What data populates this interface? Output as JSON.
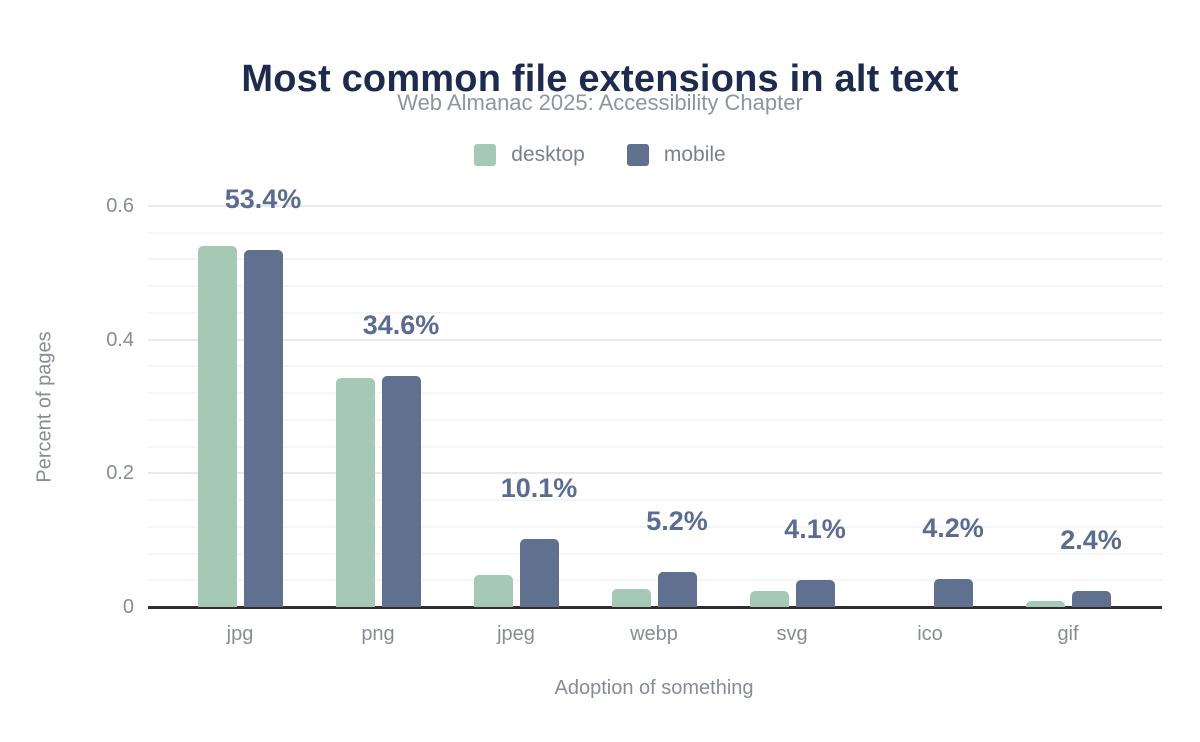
{
  "chart_data": {
    "type": "bar",
    "title": "Most common file extensions in alt text",
    "subtitle": "Web Almanac 2025: Accessibility Chapter",
    "xlabel": "Adoption of something",
    "ylabel": "Percent of pages",
    "categories": [
      "jpg",
      "png",
      "jpeg",
      "webp",
      "svg",
      "ico",
      "gif"
    ],
    "series": [
      {
        "name": "desktop",
        "color": "#a6c9b6",
        "values": [
          0.54,
          0.342,
          0.048,
          0.027,
          0.024,
          0,
          0.009
        ]
      },
      {
        "name": "mobile",
        "color": "#5f718e",
        "values": [
          0.534,
          0.346,
          0.101,
          0.052,
          0.041,
          0.042,
          0.024
        ]
      }
    ],
    "bar_labels": [
      "53.4%",
      "34.6%",
      "10.1%",
      "5.2%",
      "4.1%",
      "4.2%",
      "2.4%"
    ],
    "bar_label_series": "mobile",
    "y_ticks": [
      0,
      0.2,
      0.4,
      0.6
    ],
    "y_tick_labels": [
      "0",
      "0.2",
      "0.4",
      "0.6"
    ],
    "ylim": [
      0,
      0.6
    ],
    "grid": {
      "major_step": 0.2,
      "minor_step": 0.04,
      "visible": true
    },
    "legend_position": "top"
  },
  "colors": {
    "title": "#1d2c4e",
    "subtitle": "#8f949e",
    "legend_text": "#7b818b",
    "tick_label": "#878c95",
    "axis_title": "#878c95",
    "bar_label": "#5a6c91",
    "baseline": "#2f2f33",
    "grid_major": "#e7e9ec",
    "grid_minor": "#f4f5f7"
  }
}
